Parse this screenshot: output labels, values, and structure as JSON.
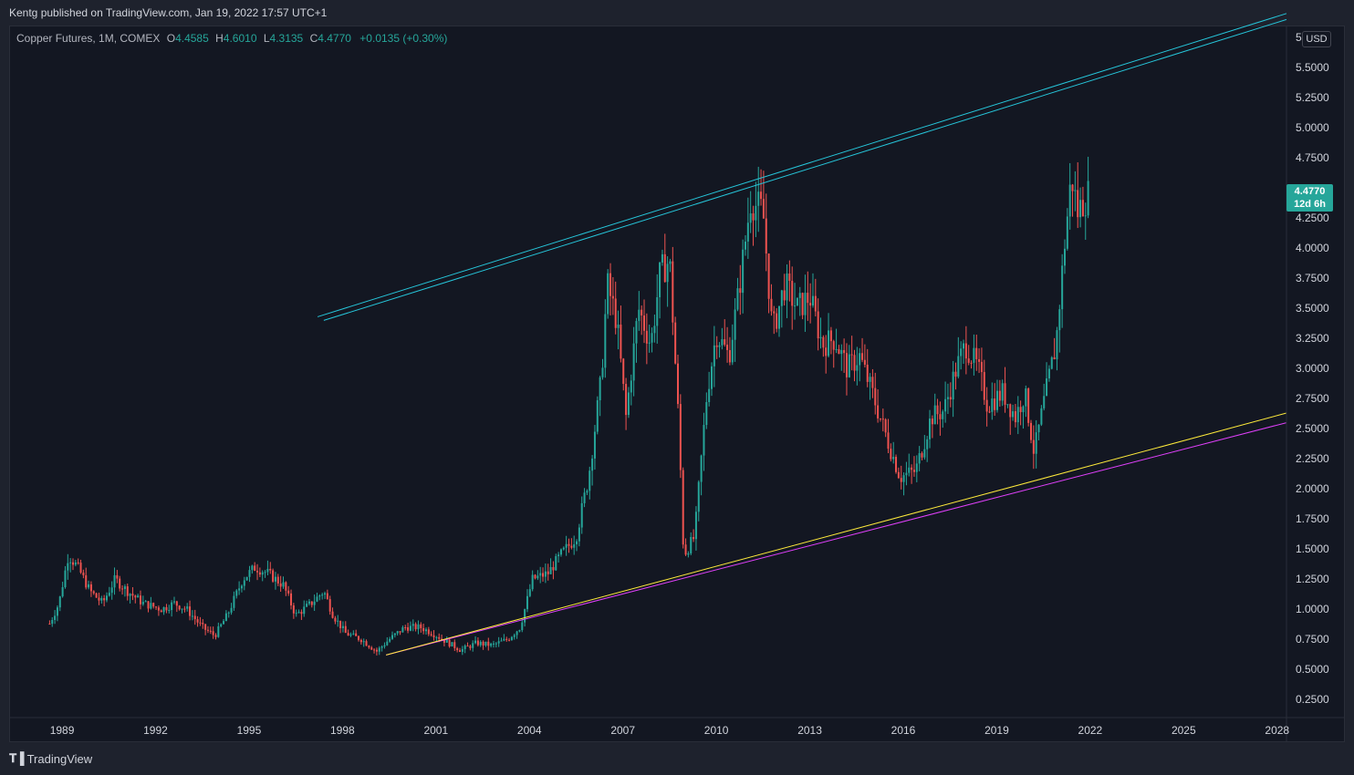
{
  "header": {
    "published": "Kentg published on TradingView.com, Jan 19, 2022 17:57 UTC+1"
  },
  "legend": {
    "symbol": "Copper Futures, 1M, COMEX",
    "o_label": "O",
    "o_value": "4.4585",
    "h_label": "H",
    "h_value": "4.6010",
    "l_label": "L",
    "l_value": "4.3135",
    "c_label": "C",
    "c_value": "4.4770",
    "change": "+0.0135 (+0.30%)"
  },
  "price_axis": {
    "currency": "USD",
    "top_partial": "5",
    "current_price": "4.4770",
    "countdown": "12d 6h"
  },
  "footer": {
    "brand": "TradingView"
  },
  "colors": {
    "up": "#26a69a",
    "down": "#ef5350",
    "cyan_line": "#26c6da",
    "yellow_line": "#ffeb3b",
    "magenta_line": "#e040fb",
    "background": "#131722"
  },
  "chart_data": {
    "type": "candlestick",
    "title": "Copper Futures, 1M, COMEX",
    "xlabel": "",
    "ylabel": "",
    "x_ticks": [
      "1989",
      "1992",
      "1995",
      "1998",
      "2001",
      "2004",
      "2007",
      "2010",
      "2013",
      "2016",
      "2019",
      "2022",
      "2025",
      "2028"
    ],
    "y_ticks": [
      "5.5000",
      "5.2500",
      "5.0000",
      "4.7500",
      "4.2500",
      "4.0000",
      "3.7500",
      "3.5000",
      "3.2500",
      "3.0000",
      "2.7500",
      "2.5000",
      "2.2500",
      "2.0000",
      "1.7500",
      "1.5000",
      "1.2500",
      "1.0000",
      "0.7500",
      "0.5000",
      "0.2500"
    ],
    "ylim": [
      0.1,
      5.85
    ],
    "xlim": [
      1987.3,
      2028.3
    ],
    "grid": false,
    "price_path": [
      [
        1988.6,
        0.88
      ],
      [
        1988.9,
        1.05
      ],
      [
        1989.2,
        1.45
      ],
      [
        1989.5,
        1.35
      ],
      [
        1989.9,
        1.15
      ],
      [
        1990.3,
        1.05
      ],
      [
        1990.7,
        1.25
      ],
      [
        1991.1,
        1.15
      ],
      [
        1991.6,
        1.05
      ],
      [
        1992.2,
        1.0
      ],
      [
        1992.6,
        1.05
      ],
      [
        1993.0,
        1.0
      ],
      [
        1993.5,
        0.85
      ],
      [
        1993.9,
        0.78
      ],
      [
        1994.3,
        0.95
      ],
      [
        1994.8,
        1.25
      ],
      [
        1995.2,
        1.35
      ],
      [
        1995.6,
        1.3
      ],
      [
        1996.1,
        1.2
      ],
      [
        1996.5,
        0.95
      ],
      [
        1997.0,
        1.05
      ],
      [
        1997.4,
        1.15
      ],
      [
        1997.7,
        0.95
      ],
      [
        1998.1,
        0.8
      ],
      [
        1998.6,
        0.75
      ],
      [
        1999.1,
        0.65
      ],
      [
        1999.5,
        0.75
      ],
      [
        2000.0,
        0.85
      ],
      [
        2000.5,
        0.85
      ],
      [
        2000.9,
        0.8
      ],
      [
        2001.4,
        0.72
      ],
      [
        2001.8,
        0.66
      ],
      [
        2002.3,
        0.72
      ],
      [
        2002.8,
        0.7
      ],
      [
        2003.3,
        0.75
      ],
      [
        2003.7,
        0.85
      ],
      [
        2004.1,
        1.25
      ],
      [
        2004.6,
        1.3
      ],
      [
        2005.0,
        1.45
      ],
      [
        2005.5,
        1.6
      ],
      [
        2005.9,
        2.1
      ],
      [
        2006.3,
        2.9
      ],
      [
        2006.5,
        3.7
      ],
      [
        2006.8,
        3.4
      ],
      [
        2007.1,
        2.6
      ],
      [
        2007.5,
        3.5
      ],
      [
        2007.9,
        3.2
      ],
      [
        2008.2,
        3.8
      ],
      [
        2008.5,
        3.9
      ],
      [
        2008.8,
        2.5
      ],
      [
        2008.95,
        1.45
      ],
      [
        2009.3,
        1.6
      ],
      [
        2009.7,
        2.8
      ],
      [
        2010.0,
        3.3
      ],
      [
        2010.4,
        3.1
      ],
      [
        2010.7,
        3.6
      ],
      [
        2011.1,
        4.4
      ],
      [
        2011.5,
        4.3
      ],
      [
        2011.8,
        3.3
      ],
      [
        2012.2,
        3.7
      ],
      [
        2012.6,
        3.5
      ],
      [
        2013.0,
        3.6
      ],
      [
        2013.4,
        3.2
      ],
      [
        2013.8,
        3.25
      ],
      [
        2014.2,
        3.0
      ],
      [
        2014.6,
        3.1
      ],
      [
        2015.0,
        2.8
      ],
      [
        2015.5,
        2.4
      ],
      [
        2015.9,
        2.1
      ],
      [
        2016.4,
        2.15
      ],
      [
        2016.9,
        2.6
      ],
      [
        2017.3,
        2.65
      ],
      [
        2017.7,
        3.0
      ],
      [
        2018.0,
        3.2
      ],
      [
        2018.4,
        3.0
      ],
      [
        2018.7,
        2.7
      ],
      [
        2019.2,
        2.8
      ],
      [
        2019.6,
        2.6
      ],
      [
        2019.9,
        2.8
      ],
      [
        2020.2,
        2.3
      ],
      [
        2020.5,
        2.7
      ],
      [
        2020.9,
        3.2
      ],
      [
        2021.2,
        4.1
      ],
      [
        2021.4,
        4.6
      ],
      [
        2021.6,
        4.3
      ],
      [
        2021.8,
        4.4
      ],
      [
        2022.0,
        4.47
      ]
    ],
    "trend_lines": [
      {
        "color": "cyan",
        "points": [
          [
            1997.2,
            3.43
          ],
          [
            2028.3,
            5.95
          ]
        ]
      },
      {
        "color": "cyan",
        "points": [
          [
            1997.4,
            3.4
          ],
          [
            2028.3,
            5.9
          ]
        ]
      },
      {
        "color": "magenta",
        "points": [
          [
            1999.4,
            0.62
          ],
          [
            2028.3,
            2.55
          ]
        ]
      },
      {
        "color": "yellow",
        "points": [
          [
            1999.4,
            0.62
          ],
          [
            2028.3,
            2.63
          ]
        ]
      }
    ]
  }
}
